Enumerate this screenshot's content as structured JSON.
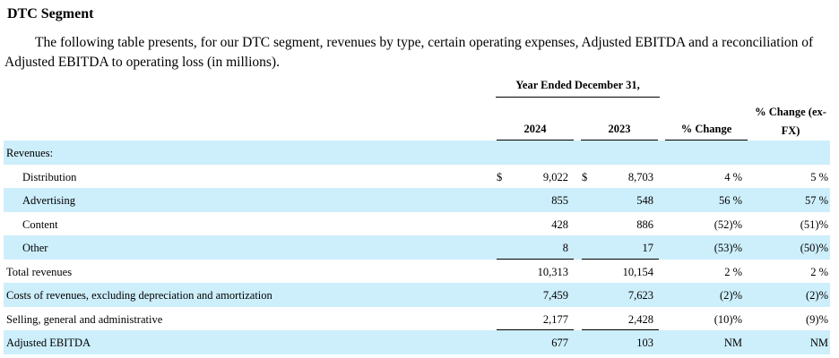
{
  "heading": "DTC Segment",
  "intro": "The following table presents, for our DTC segment, revenues by type, certain operating expenses, Adjusted EBITDA and a reconciliation of Adjusted EBITDA to operating loss (in millions).",
  "table": {
    "period_header": "Year Ended December 31,",
    "columns": {
      "y2024": "2024",
      "y2023": "2023",
      "pct_change": "% Change",
      "pct_change_exfx": "% Change (ex-FX)"
    },
    "rows": [
      {
        "label": "Revenues:",
        "y2024": "",
        "y2023": "",
        "pct": "",
        "fx": ""
      },
      {
        "label": "Distribution",
        "currency": "$",
        "y2024": "9,022",
        "y2023": "8,703",
        "pct": "4 %",
        "fx": "5 %"
      },
      {
        "label": "Advertising",
        "y2024": "855",
        "y2023": "548",
        "pct": "56 %",
        "fx": "57 %"
      },
      {
        "label": "Content",
        "y2024": "428",
        "y2023": "886",
        "pct": "(52)%",
        "fx": "(51)%"
      },
      {
        "label": "Other",
        "y2024": "8",
        "y2023": "17",
        "pct": "(53)%",
        "fx": "(50)%"
      },
      {
        "label": "Total revenues",
        "y2024": "10,313",
        "y2023": "10,154",
        "pct": "2 %",
        "fx": "2 %"
      },
      {
        "label": "Costs of revenues, excluding depreciation and amortization",
        "y2024": "7,459",
        "y2023": "7,623",
        "pct": "(2)%",
        "fx": "(2)%"
      },
      {
        "label": "Selling, general and administrative",
        "y2024": "2,177",
        "y2023": "2,428",
        "pct": "(10)%",
        "fx": "(9)%"
      },
      {
        "label": "Adjusted EBITDA",
        "y2024": "677",
        "y2023": "103",
        "pct": "NM",
        "fx": "NM"
      }
    ]
  }
}
